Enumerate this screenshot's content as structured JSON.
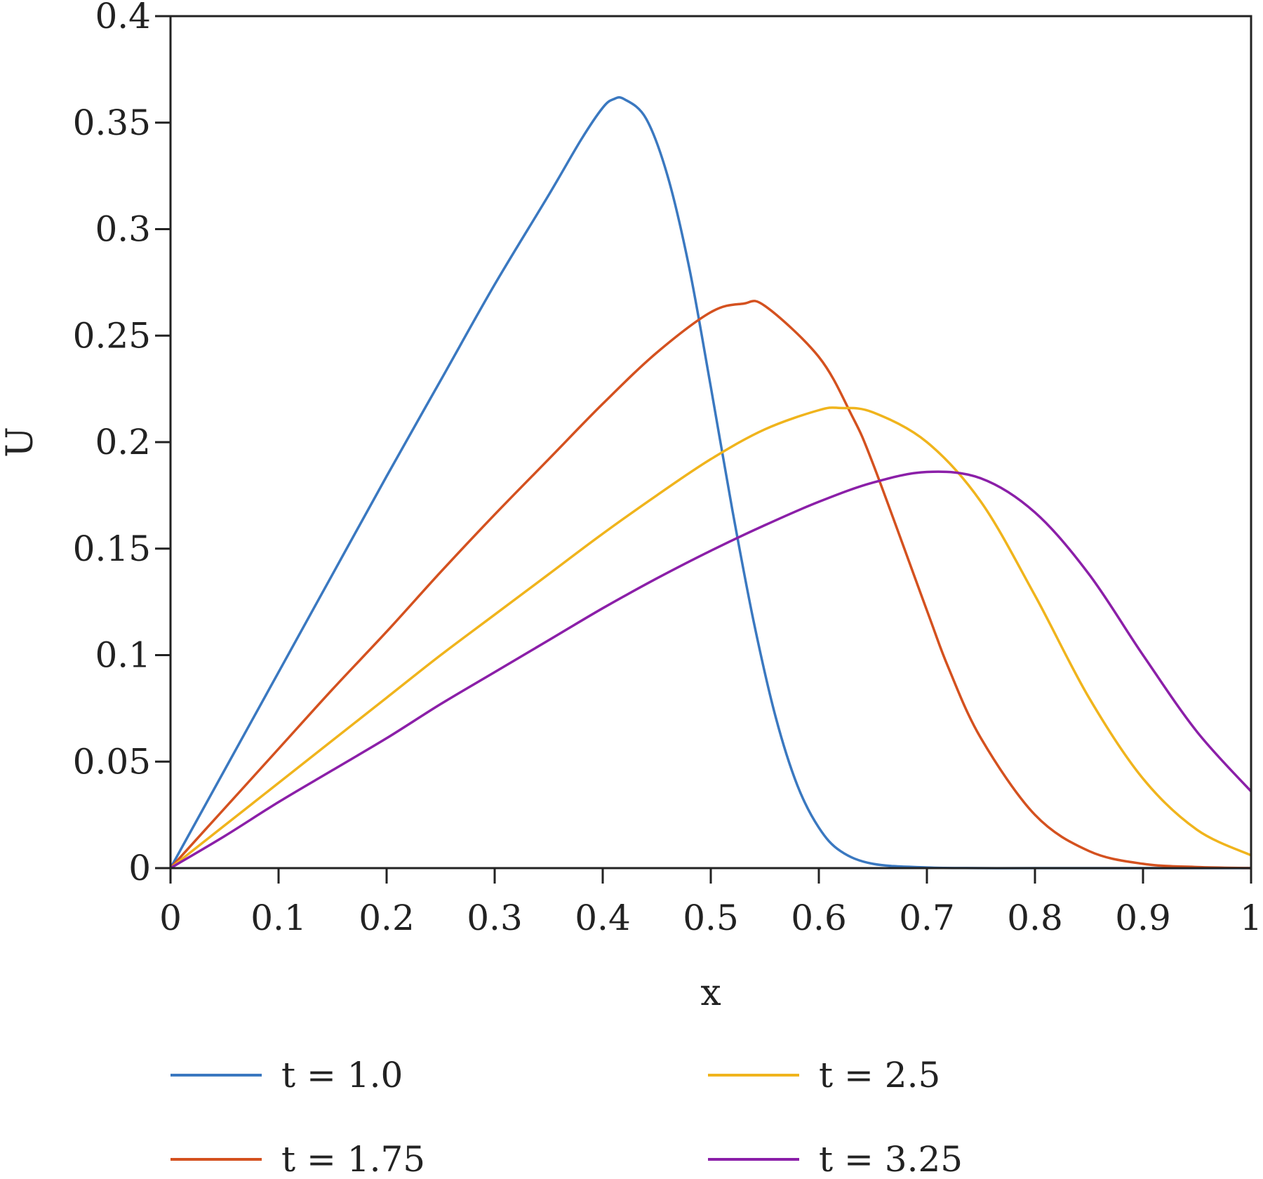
{
  "chart_data": {
    "type": "line",
    "title": "",
    "xlabel": "x",
    "ylabel": "U",
    "xlim": [
      0,
      1
    ],
    "ylim": [
      0,
      0.4
    ],
    "xticks": [
      "0",
      "0.1",
      "0.2",
      "0.3",
      "0.4",
      "0.5",
      "0.6",
      "0.7",
      "0.8",
      "0.9",
      "1"
    ],
    "yticks": [
      "0",
      "0.05",
      "0.1",
      "0.15",
      "0.2",
      "0.25",
      "0.3",
      "0.35",
      "0.4"
    ],
    "grid": false,
    "legend_position": "bottom",
    "series": [
      {
        "name": "t = 1.0",
        "color": "#3a78c0",
        "x": [
          0,
          0.05,
          0.1,
          0.15,
          0.2,
          0.25,
          0.3,
          0.35,
          0.38,
          0.4,
          0.41,
          0.42,
          0.44,
          0.46,
          0.48,
          0.5,
          0.52,
          0.54,
          0.56,
          0.58,
          0.6,
          0.62,
          0.65,
          0.7,
          0.75,
          0.8,
          0.9,
          1.0
        ],
        "y": [
          0,
          0.046,
          0.092,
          0.138,
          0.184,
          0.229,
          0.274,
          0.316,
          0.342,
          0.357,
          0.361,
          0.361,
          0.352,
          0.325,
          0.282,
          0.226,
          0.168,
          0.115,
          0.071,
          0.039,
          0.019,
          0.008,
          0.002,
          0.0003,
          0,
          0,
          0,
          0
        ]
      },
      {
        "name": "t = 1.75",
        "color": "#d4511f",
        "x": [
          0,
          0.05,
          0.1,
          0.15,
          0.2,
          0.25,
          0.3,
          0.35,
          0.4,
          0.45,
          0.5,
          0.53,
          0.55,
          0.6,
          0.63,
          0.65,
          0.7,
          0.72,
          0.75,
          0.8,
          0.85,
          0.9,
          0.95,
          1.0
        ],
        "y": [
          0,
          0.028,
          0.056,
          0.084,
          0.111,
          0.139,
          0.166,
          0.192,
          0.218,
          0.242,
          0.261,
          0.265,
          0.264,
          0.24,
          0.213,
          0.19,
          0.121,
          0.094,
          0.061,
          0.025,
          0.008,
          0.002,
          0.0005,
          0
        ]
      },
      {
        "name": "t = 2.5",
        "color": "#f0b41c",
        "x": [
          0,
          0.05,
          0.1,
          0.15,
          0.2,
          0.25,
          0.3,
          0.35,
          0.4,
          0.45,
          0.5,
          0.55,
          0.6,
          0.62,
          0.65,
          0.7,
          0.75,
          0.8,
          0.85,
          0.9,
          0.95,
          1.0
        ],
        "y": [
          0,
          0.02,
          0.04,
          0.06,
          0.08,
          0.1,
          0.119,
          0.138,
          0.157,
          0.175,
          0.192,
          0.206,
          0.215,
          0.216,
          0.214,
          0.2,
          0.172,
          0.128,
          0.08,
          0.042,
          0.018,
          0.006
        ]
      },
      {
        "name": "t = 3.25",
        "color": "#8b1fa8",
        "x": [
          0,
          0.05,
          0.1,
          0.15,
          0.2,
          0.25,
          0.3,
          0.35,
          0.4,
          0.45,
          0.5,
          0.55,
          0.6,
          0.65,
          0.7,
          0.75,
          0.8,
          0.85,
          0.9,
          0.95,
          1.0
        ],
        "y": [
          0,
          0.015,
          0.031,
          0.046,
          0.061,
          0.077,
          0.092,
          0.107,
          0.122,
          0.136,
          0.149,
          0.161,
          0.172,
          0.181,
          0.186,
          0.183,
          0.167,
          0.138,
          0.1,
          0.064,
          0.036
        ]
      }
    ]
  }
}
